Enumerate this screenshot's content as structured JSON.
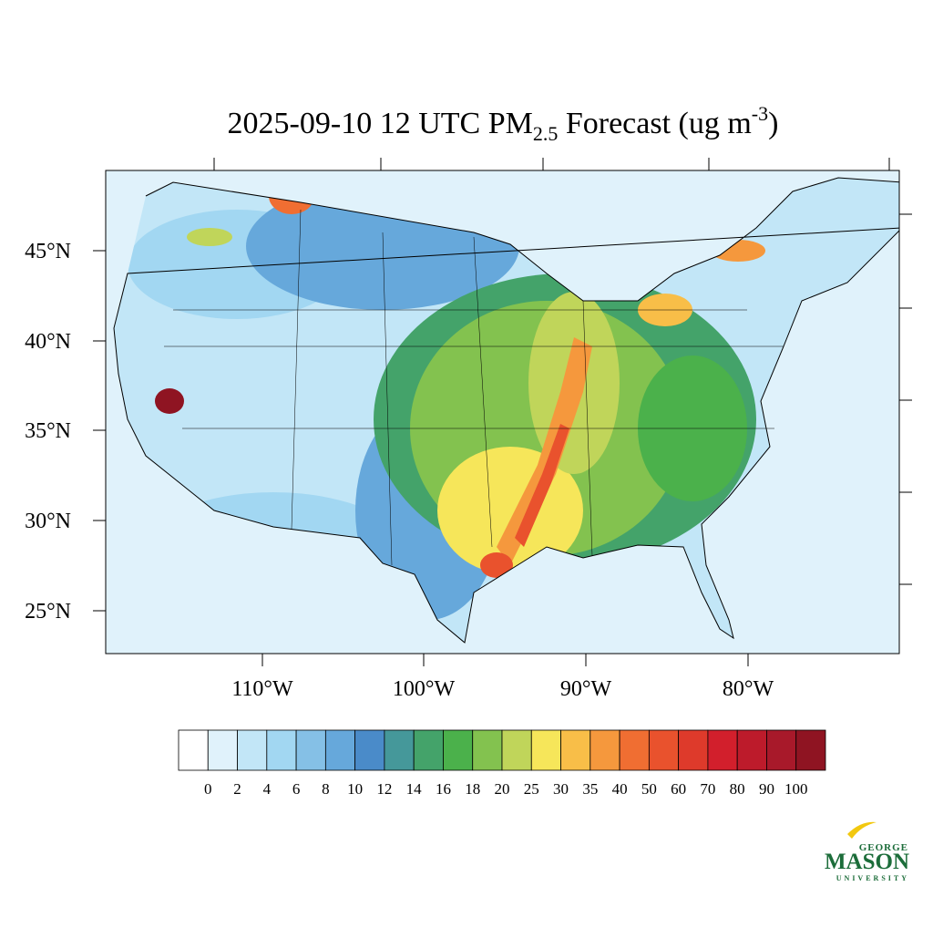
{
  "title": {
    "main": "2025-09-10 12 UTC PM",
    "sub": "2.5",
    "rest": " Forecast (ug m",
    "sup": "-3",
    "end": ")"
  },
  "map": {
    "lat_labels": [
      "45°N",
      "40°N",
      "35°N",
      "30°N",
      "25°N"
    ],
    "lon_labels": [
      "110°W",
      "100°W",
      "90°W",
      "80°W"
    ]
  },
  "colorbar": {
    "levels": [
      0,
      2,
      4,
      6,
      8,
      10,
      12,
      14,
      16,
      18,
      20,
      25,
      30,
      35,
      40,
      50,
      60,
      70,
      80,
      90,
      100
    ],
    "colors": [
      "#ffffff",
      "#e0f2fb",
      "#c2e6f7",
      "#a2d7f2",
      "#85c0e6",
      "#66a8db",
      "#4a8bc9",
      "#45989a",
      "#44a36a",
      "#4bb14b",
      "#83c24f",
      "#c0d55a",
      "#f6e65a",
      "#f8be48",
      "#f5983d",
      "#f06e32",
      "#e9522d",
      "#de3a2b",
      "#d21f2c",
      "#bd1b2b",
      "#a8192a",
      "#8f1422"
    ]
  },
  "logo": {
    "top": "GEORGE",
    "name": "MASON",
    "bottom": "UNIVERSITY"
  }
}
